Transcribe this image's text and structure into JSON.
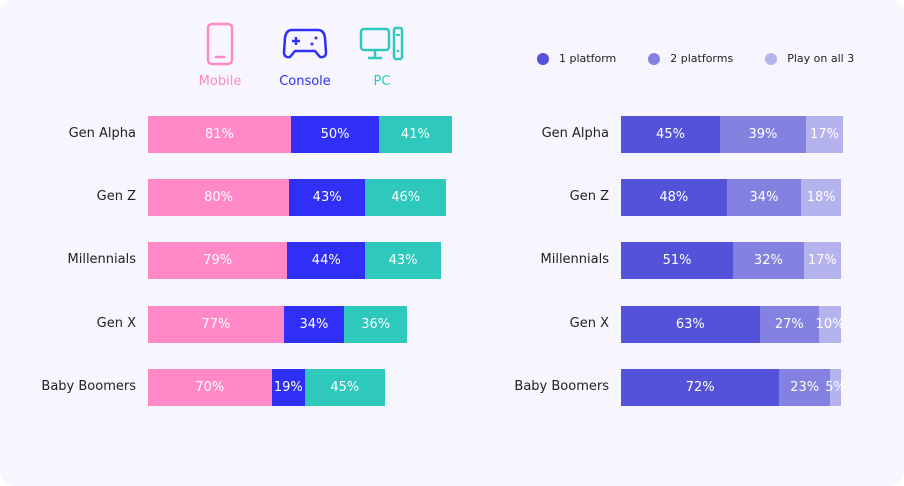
{
  "platforms": [
    {
      "label": "Mobile",
      "icon": "mobile-phone-icon",
      "color": "#ff88c6"
    },
    {
      "label": "Console",
      "icon": "gamepad-icon",
      "color": "#2f2ff5"
    },
    {
      "label": "PC",
      "icon": "desktop-pc-icon",
      "color": "#2ec8bc"
    }
  ],
  "chart_data": [
    {
      "type": "bar",
      "orientation": "horizontal",
      "stacked": true,
      "categories": [
        "Gen Alpha",
        "Gen Z",
        "Millennials",
        "Gen X",
        "Baby Boomers"
      ],
      "series": [
        {
          "name": "Mobile",
          "color": "#ff88c6",
          "values": [
            81,
            80,
            79,
            77,
            70
          ]
        },
        {
          "name": "Console",
          "color": "#2f2ff5",
          "values": [
            50,
            43,
            44,
            34,
            19
          ]
        },
        {
          "name": "PC",
          "color": "#2ec8bc",
          "values": [
            41,
            46,
            43,
            36,
            45
          ]
        }
      ],
      "value_suffix": "%",
      "grid": false,
      "legend": "top"
    },
    {
      "type": "bar",
      "orientation": "horizontal",
      "stacked": true,
      "categories": [
        "Gen Alpha",
        "Gen Z",
        "Millennials",
        "Gen X",
        "Baby Boomers"
      ],
      "series": [
        {
          "name": "1 platform",
          "color": "#5452d8",
          "values": [
            45,
            48,
            51,
            63,
            72
          ]
        },
        {
          "name": "2 platforms",
          "color": "#8482e0",
          "values": [
            39,
            34,
            32,
            27,
            23
          ]
        },
        {
          "name": "Play on all 3",
          "color": "#b5b3ee",
          "values": [
            17,
            18,
            17,
            10,
            5
          ]
        }
      ],
      "value_suffix": "%",
      "grid": false,
      "legend": "top-right"
    }
  ]
}
